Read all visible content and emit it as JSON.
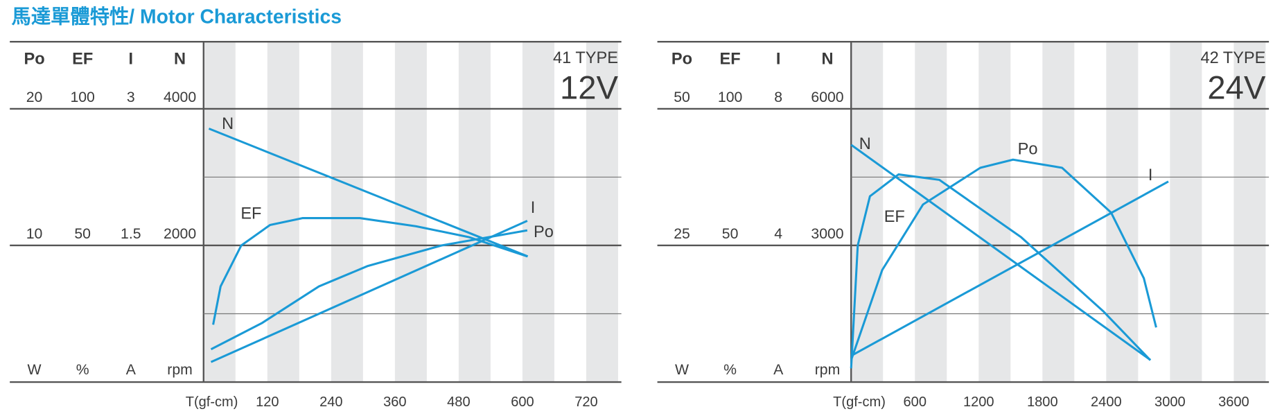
{
  "title": "馬達單體特性/ Motor Characteristics",
  "chart_data": [
    {
      "type": "line",
      "model": "41 TYPE",
      "voltage": "12V",
      "x_label": "T(gf-cm)",
      "xlim": [
        0,
        780
      ],
      "xticks": [
        120,
        240,
        360,
        480,
        600,
        720
      ],
      "color": "#1a9ad6",
      "grid": true,
      "axes": [
        {
          "name": "Po",
          "unit": "W",
          "lim": [
            0,
            20
          ],
          "ticks": [
            10,
            20
          ]
        },
        {
          "name": "EF",
          "unit": "%",
          "lim": [
            0,
            100
          ],
          "ticks": [
            50,
            100
          ]
        },
        {
          "name": "I",
          "unit": "A",
          "lim": [
            0,
            3
          ],
          "ticks": [
            1.5,
            3
          ]
        },
        {
          "name": "N",
          "unit": "rpm",
          "lim": [
            0,
            4000
          ],
          "ticks": [
            2000,
            4000
          ]
        }
      ],
      "series": [
        {
          "name": "N",
          "axis": "N",
          "x": [
            10,
            610
          ],
          "values": [
            3710,
            1840
          ]
        },
        {
          "name": "EF",
          "axis": "EF",
          "x": [
            18,
            32,
            71,
            125,
            186,
            294,
            400,
            500,
            609
          ],
          "values": [
            21,
            35,
            50,
            57.5,
            60,
            60,
            57,
            53,
            46
          ]
        },
        {
          "name": "I",
          "axis": "I",
          "x": [
            14,
            609
          ],
          "values": [
            0.22,
            1.77
          ]
        },
        {
          "name": "Po",
          "axis": "Po",
          "x": [
            14,
            109,
            217,
            309,
            448,
            609
          ],
          "values": [
            2.4,
            4.3,
            7,
            8.5,
            10,
            11.1
          ]
        }
      ]
    },
    {
      "type": "line",
      "model": "42 TYPE",
      "voltage": "24V",
      "x_label": "T(gf-cm)",
      "xlim": [
        0,
        3900
      ],
      "xticks": [
        600,
        1200,
        1800,
        2400,
        3000,
        3600
      ],
      "color": "#1a9ad6",
      "grid": true,
      "axes": [
        {
          "name": "Po",
          "unit": "W",
          "lim": [
            0,
            50
          ],
          "ticks": [
            25,
            50
          ]
        },
        {
          "name": "EF",
          "unit": "%",
          "lim": [
            0,
            100
          ],
          "ticks": [
            50,
            100
          ]
        },
        {
          "name": "I",
          "unit": "A",
          "lim": [
            0,
            8
          ],
          "ticks": [
            4,
            8
          ]
        },
        {
          "name": "N",
          "unit": "rpm",
          "lim": [
            0,
            6000
          ],
          "ticks": [
            3000,
            6000
          ]
        }
      ],
      "series": [
        {
          "name": "N",
          "axis": "N",
          "x": [
            0,
            2815
          ],
          "values": [
            5210,
            485
          ]
        },
        {
          "name": "EF",
          "axis": "EF",
          "x": [
            0,
            62,
            177,
            446,
            830,
            1600,
            2370,
            2815
          ],
          "values": [
            5,
            50,
            68,
            76,
            74,
            53,
            26,
            8
          ]
        },
        {
          "name": "Po",
          "axis": "Po",
          "x": [
            0,
            292,
            677,
            1215,
            1523,
            1985,
            2446,
            2754,
            2870
          ],
          "values": [
            4,
            20.5,
            32.5,
            39.2,
            40.7,
            39.2,
            31,
            19,
            10
          ]
        },
        {
          "name": "I",
          "axis": "I",
          "x": [
            0,
            2985
          ],
          "values": [
            0.77,
            5.87
          ]
        }
      ]
    }
  ]
}
